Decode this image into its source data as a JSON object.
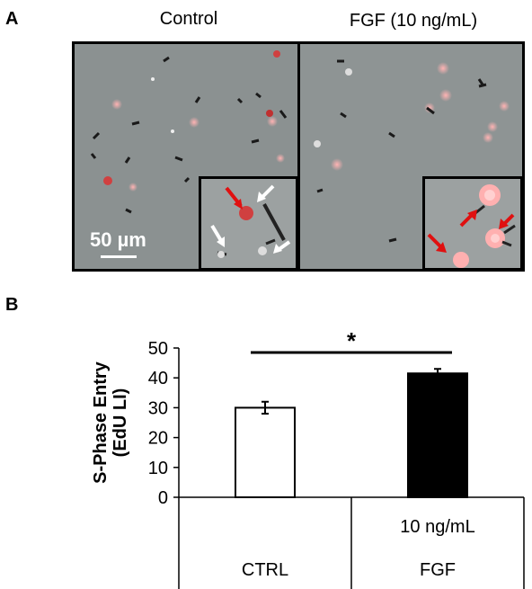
{
  "panel_a": {
    "letter": "A",
    "images": [
      {
        "title": "Control"
      },
      {
        "title": "FGF (10 ng/mL)"
      }
    ],
    "scale_bar_label": "50 µm"
  },
  "panel_b": {
    "letter": "B"
  },
  "colors": {
    "ctrl_bar": "#ffffff",
    "fgf_bar": "#000000",
    "edu_positive": "#f2a0a0",
    "arrow_red": "#e01010",
    "arrow_white": "#ffffff"
  },
  "chart_data": {
    "type": "bar",
    "categories": [
      "CTRL",
      "FGF"
    ],
    "category_sublabels": [
      "",
      "10 ng/mL"
    ],
    "values": [
      30,
      41.5
    ],
    "errors": [
      2,
      1.5
    ],
    "ylabel": "S-Phase Entry (EdU LI)",
    "ylabel_lines": [
      "S-Phase Entry",
      "(EdU LI)"
    ],
    "ylim": [
      0,
      50
    ],
    "yticks": [
      0,
      10,
      20,
      30,
      40,
      50
    ],
    "significance": "*",
    "grid": false
  }
}
